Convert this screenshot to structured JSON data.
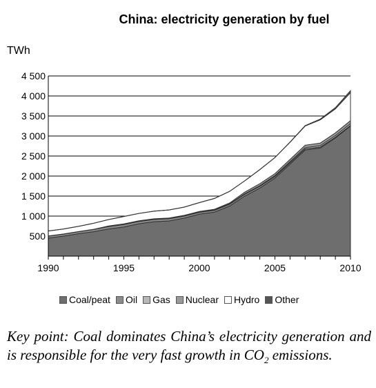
{
  "chart_data": {
    "type": "area",
    "title": "China: electricity generation by fuel",
    "ylabel": "TWh",
    "xlabel": "",
    "xlim": [
      1990,
      2010
    ],
    "ylim": [
      0,
      4500
    ],
    "x_ticks": [
      "1990",
      "1995",
      "2000",
      "2005",
      "2010"
    ],
    "y_ticks": [
      "500",
      "1 000",
      "1 500",
      "2 000",
      "2 500",
      "3 000",
      "3 500",
      "4 000",
      "4 500"
    ],
    "grid": true,
    "stacked": true,
    "legend_position": "bottom",
    "x": [
      1990,
      1991,
      1992,
      1993,
      1994,
      1995,
      1996,
      1997,
      1998,
      1999,
      2000,
      2001,
      2002,
      2003,
      2004,
      2005,
      2006,
      2007,
      2008,
      2009,
      2010
    ],
    "series": [
      {
        "name": "Coal/peat",
        "color": "#6e6e6e",
        "values": [
          450,
          500,
          560,
          610,
          680,
          730,
          810,
          860,
          880,
          950,
          1050,
          1100,
          1250,
          1500,
          1700,
          1950,
          2300,
          2650,
          2700,
          2950,
          3250
        ]
      },
      {
        "name": "Oil",
        "color": "#8c8c8c",
        "values": [
          50,
          50,
          50,
          55,
          60,
          60,
          55,
          55,
          55,
          50,
          45,
          45,
          45,
          45,
          45,
          40,
          35,
          30,
          25,
          20,
          15
        ]
      },
      {
        "name": "Gas",
        "color": "#b8b8b8",
        "values": [
          3,
          3,
          3,
          3,
          3,
          3,
          3,
          4,
          5,
          5,
          6,
          8,
          10,
          12,
          15,
          20,
          25,
          30,
          35,
          40,
          45
        ]
      },
      {
        "name": "Nuclear",
        "color": "#9a9a9a",
        "values": [
          0,
          0,
          0,
          2,
          10,
          12,
          14,
          14,
          14,
          14,
          16,
          17,
          22,
          42,
          50,
          50,
          55,
          60,
          65,
          68,
          73
        ]
      },
      {
        "name": "Hydro",
        "color": "#ffffff",
        "values": [
          125,
          125,
          130,
          150,
          160,
          185,
          185,
          190,
          200,
          205,
          220,
          270,
          290,
          280,
          350,
          400,
          430,
          480,
          580,
          600,
          700
        ]
      },
      {
        "name": "Other",
        "color": "#555555",
        "values": [
          1,
          1,
          1,
          1,
          1,
          1,
          1,
          1,
          1,
          1,
          2,
          2,
          2,
          2,
          3,
          3,
          5,
          10,
          20,
          30,
          50
        ]
      }
    ]
  },
  "legend": {
    "items": [
      "Coal/peat",
      "Oil",
      "Gas",
      "Nuclear",
      "Hydro",
      "Other"
    ]
  },
  "caption": {
    "part1": "Key point: Coal dominates China’s electricity generation and is responsible for the very fast growth in CO",
    "sub": "2",
    "part2": " emissions."
  }
}
